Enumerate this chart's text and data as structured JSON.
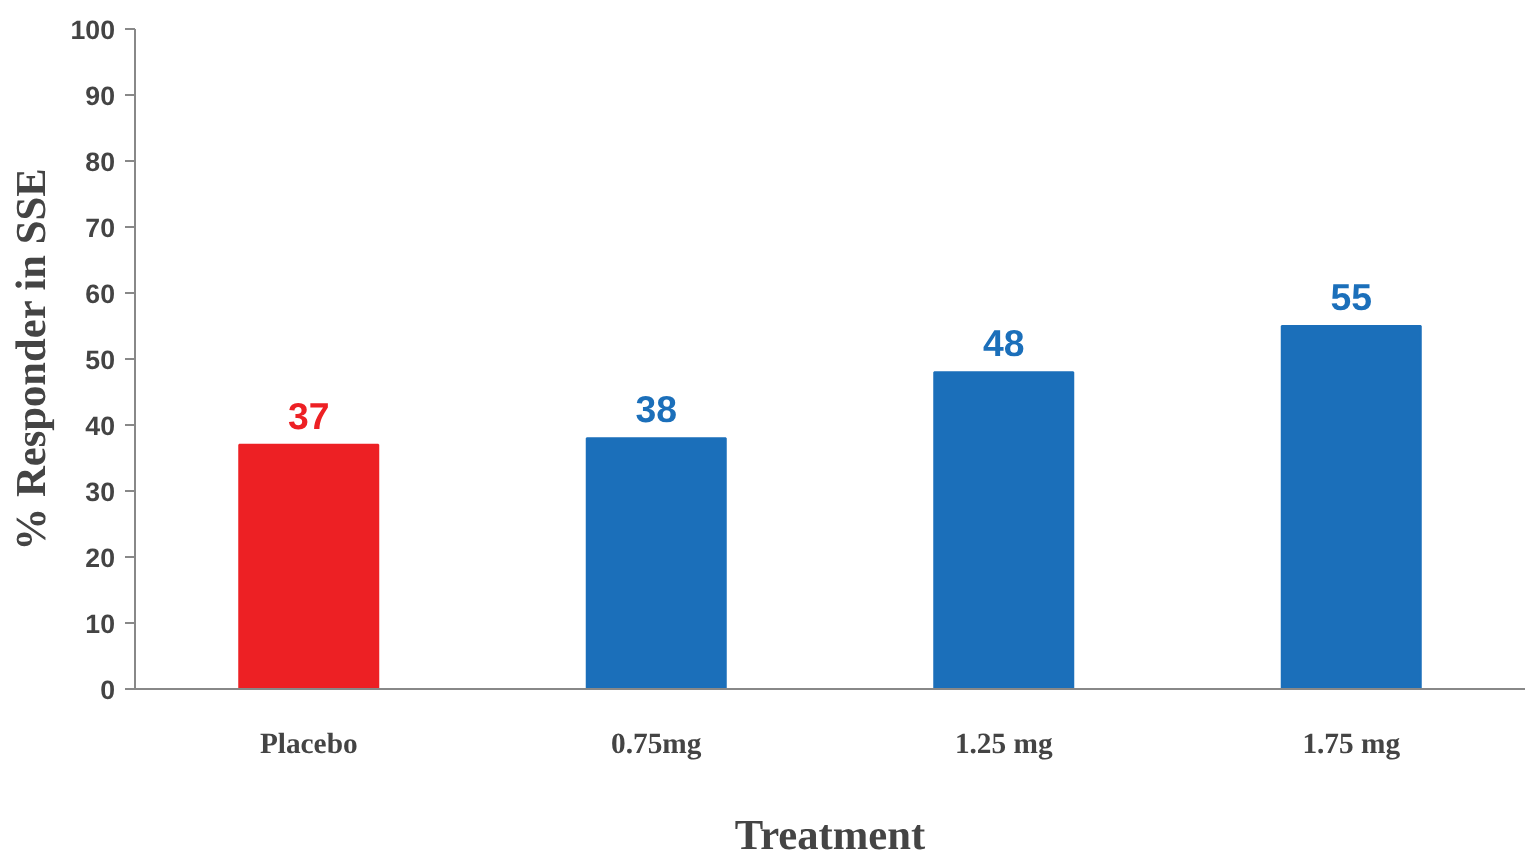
{
  "chart_data": {
    "type": "bar",
    "xlabel": "Treatment",
    "ylabel": "% Responder in SSE",
    "categories": [
      "Placebo",
      "0.75mg",
      "1.25 mg",
      "1.75 mg"
    ],
    "values": [
      37,
      38,
      48,
      55
    ],
    "colors": [
      "#ed2024",
      "#1b6fba",
      "#1b6fba",
      "#1b6fba"
    ],
    "ylim": [
      0,
      100
    ],
    "yticks": [
      0,
      10,
      20,
      30,
      40,
      50,
      60,
      70,
      80,
      90,
      100
    ],
    "grid": false,
    "data_labels": true
  }
}
